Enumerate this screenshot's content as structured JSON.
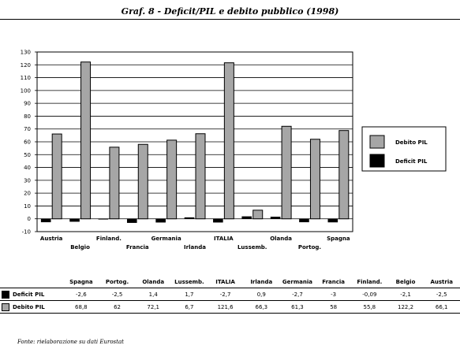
{
  "title": "Graf. 8 - Deficit/PIL e debito pubblico (1998)",
  "source": "Fonte: rielaborazione su dati Eurostat",
  "colors": {
    "debt": "#a6a6a6",
    "deficit": "#000000"
  },
  "chart_data": {
    "type": "bar",
    "categories": [
      "Austria",
      "Belgio",
      "Finland.",
      "Francia",
      "Germania",
      "Irlanda",
      "ITALIA",
      "Lussemb.",
      "Olanda",
      "Portog.",
      "Spagna"
    ],
    "series": [
      {
        "name": "Deficit PIL",
        "values": [
          -2.5,
          -2.1,
          -0.09,
          -3,
          -2.7,
          0.9,
          -2.7,
          1.7,
          1.4,
          -2.5,
          -2.6
        ]
      },
      {
        "name": "Debito PIL",
        "values": [
          66.1,
          122.2,
          55.8,
          58,
          61.3,
          66.3,
          121.6,
          6.7,
          72.1,
          62,
          68.8
        ]
      }
    ],
    "ylim": [
      -10,
      130
    ],
    "yticks": [
      "-10",
      "0",
      "10",
      "20",
      "30",
      "40",
      "50",
      "60",
      "70",
      "80",
      "90",
      "100",
      "110",
      "120",
      "130"
    ],
    "legend": {
      "placement": "right",
      "entries": [
        "Debito PIL",
        "Deficit PIL"
      ]
    }
  },
  "table": {
    "columns": [
      "Spagna",
      "Portog.",
      "Olanda",
      "Lussemb.",
      "ITALIA",
      "Irlanda",
      "Germania",
      "Francia",
      "Finland.",
      "Belgio",
      "Austria"
    ],
    "rows": [
      {
        "label": "Deficit PIL",
        "values": [
          "-2,6",
          "-2,5",
          "1,4",
          "1,7",
          "-2,7",
          "0,9",
          "-2,7",
          "-3",
          "-0,09",
          "-2,1",
          "-2,5"
        ]
      },
      {
        "label": "Debito PIL",
        "values": [
          "68,8",
          "62",
          "72,1",
          "6,7",
          "121,6",
          "66,3",
          "61,3",
          "58",
          "55,8",
          "122,2",
          "66,1"
        ]
      }
    ]
  }
}
